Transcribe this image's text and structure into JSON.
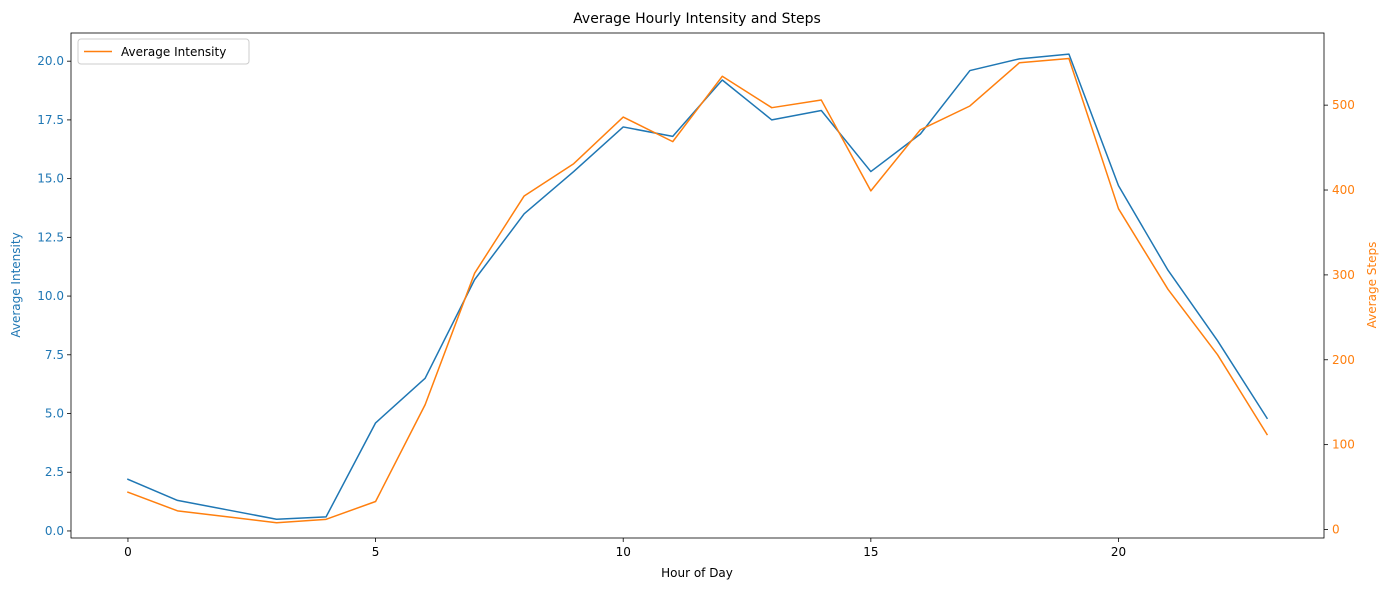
{
  "chart_data": {
    "type": "line",
    "title": "Average Hourly Intensity and Steps",
    "xlabel": "Hour of Day",
    "ylabel_left": "Average Intensity",
    "ylabel_right": "Average Steps",
    "x": [
      0,
      1,
      2,
      3,
      4,
      5,
      6,
      7,
      8,
      9,
      10,
      11,
      12,
      13,
      14,
      15,
      16,
      17,
      18,
      19,
      20,
      21,
      22,
      23
    ],
    "xlim": [
      -1.15,
      24.15
    ],
    "xticks": [
      0,
      5,
      10,
      15,
      20
    ],
    "ylim_left": [
      -0.3,
      21.2
    ],
    "yticks_left": [
      0.0,
      2.5,
      5.0,
      7.5,
      10.0,
      12.5,
      15.0,
      17.5,
      20.0
    ],
    "ylim_right": [
      -10,
      585
    ],
    "yticks_right": [
      0,
      100,
      200,
      300,
      400,
      500
    ],
    "grid": false,
    "legend": {
      "placement": "top-left",
      "entries": [
        "Average Intensity"
      ]
    },
    "series": [
      {
        "name": "Average Intensity",
        "axis": "left",
        "color": "#1f77b4",
        "values": [
          2.2,
          1.3,
          0.9,
          0.5,
          0.6,
          4.6,
          6.5,
          10.7,
          13.5,
          15.3,
          17.2,
          16.8,
          19.2,
          17.5,
          17.9,
          15.3,
          16.9,
          19.6,
          20.1,
          20.3,
          14.7,
          11.1,
          8.1,
          4.8
        ]
      },
      {
        "axis": "right",
        "color": "#ff7f0e",
        "values": [
          44,
          22,
          15,
          8,
          12,
          33,
          147,
          302,
          393,
          431,
          486,
          457,
          534,
          497,
          506,
          399,
          471,
          499,
          550,
          555,
          378,
          283,
          206,
          112
        ]
      }
    ]
  }
}
